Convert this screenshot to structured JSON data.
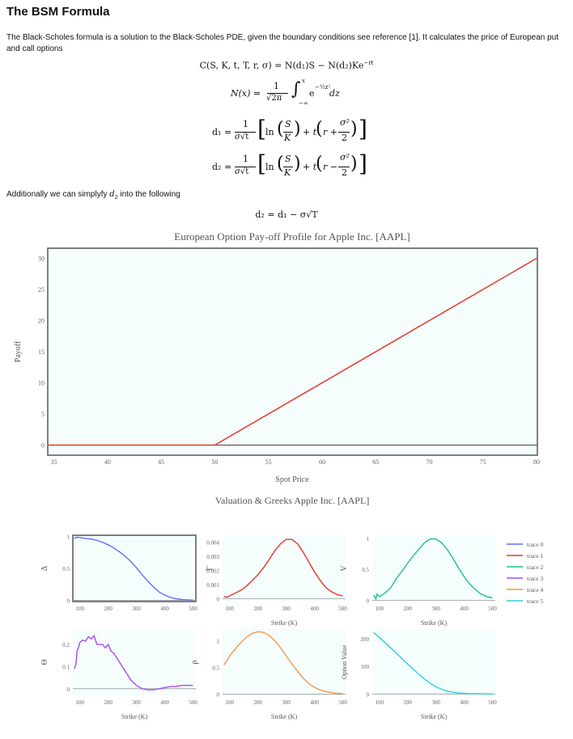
{
  "page": {
    "title": "The BSM Formula",
    "intro": "The Black-Scholes formula is a solution to the Black-Scholes PDE, given the boundary conditions see reference [1]. It calculates the price of European put and call options",
    "additional": "Additionally we can simplyfy",
    "additional_var": "d",
    "additional_sub": "2",
    "additional_tail": " into the following"
  },
  "equations": {
    "call": "C(S, K, t, T, r, σ) = N(d₁)S − N(d₂)Ke",
    "call_exp": "−rt",
    "normal_lhs": "N(x) =",
    "normal_rhs": "e",
    "normal_dz": "dz",
    "d1_lhs": "d₁ =",
    "d2_lhs": "d₂ =",
    "d2_simple": "d₂ = d₁ − σ√T"
  },
  "chart_data": [
    {
      "type": "line",
      "title": "European Option Pay-off Profile for Apple Inc. [AAPL]",
      "xlabel": "Spot Price",
      "ylabel": "Payoff",
      "xlim": [
        34.5,
        80
      ],
      "ylim": [
        -1.5,
        31.5
      ],
      "xticks": [
        35,
        40,
        45,
        50,
        55,
        60,
        65,
        70,
        75,
        80
      ],
      "yticks": [
        0,
        5,
        10,
        15,
        20,
        25,
        30
      ],
      "grid": false,
      "series": [
        {
          "color": "#e8372a",
          "x": [
            34.5,
            50,
            80
          ],
          "y": [
            0,
            0,
            30
          ]
        }
      ]
    },
    {
      "type": "line",
      "title": "Valuation & Greeks Apple Inc. [AAPL]",
      "legend": "right",
      "legend_entries": [
        "trace 0",
        "trace 1",
        "trace 2",
        "trace 3",
        "trace 4",
        "trace 5"
      ],
      "panels": [
        {
          "ylabel": "Δ",
          "xlabel": "",
          "xlim": [
            75,
            510
          ],
          "ylim": [
            -0.02,
            1.02
          ],
          "xticks": [
            100,
            200,
            300,
            400,
            500
          ],
          "yticks": [
            0,
            0.5,
            1
          ],
          "color": "#636efa",
          "x": [
            80,
            90,
            100,
            120,
            140,
            160,
            180,
            200,
            220,
            240,
            260,
            280,
            300,
            320,
            340,
            360,
            380,
            400,
            420,
            440,
            460,
            480,
            500
          ],
          "y": [
            0.97,
            0.99,
            0.985,
            0.97,
            0.96,
            0.94,
            0.91,
            0.87,
            0.82,
            0.76,
            0.69,
            0.61,
            0.51,
            0.4,
            0.3,
            0.21,
            0.13,
            0.08,
            0.045,
            0.025,
            0.012,
            0.006,
            0.003
          ]
        },
        {
          "ylabel": "Γ",
          "xlabel": "Strike (K)",
          "xlim": [
            75,
            510
          ],
          "ylim": [
            -0.0002,
            0.0045
          ],
          "xticks": [
            100,
            200,
            300,
            400,
            500
          ],
          "yticks": [
            0,
            0.001,
            0.002,
            0.003,
            0.004
          ],
          "color": "#e8372a",
          "x": [
            80,
            90,
            100,
            120,
            140,
            160,
            180,
            200,
            220,
            240,
            260,
            280,
            300,
            320,
            340,
            360,
            380,
            400,
            420,
            440,
            460,
            480,
            500
          ],
          "y": [
            0.00015,
            0.0001,
            0.0002,
            0.0004,
            0.0006,
            0.0009,
            0.0013,
            0.0017,
            0.0022,
            0.0028,
            0.0034,
            0.0039,
            0.0042,
            0.0042,
            0.0039,
            0.0033,
            0.0026,
            0.0019,
            0.0013,
            0.0008,
            0.0005,
            0.0003,
            0.0002
          ]
        },
        {
          "ylabel": "V",
          "xlabel": "Strike (K)",
          "xlim": [
            75,
            510
          ],
          "ylim": [
            -0.02,
            1.05
          ],
          "xticks": [
            100,
            200,
            300,
            400,
            500
          ],
          "yticks": [
            0,
            0.5,
            1
          ],
          "color": "#1fbf8f",
          "x": [
            80,
            88,
            92,
            100,
            120,
            140,
            160,
            180,
            200,
            220,
            240,
            260,
            280,
            300,
            320,
            340,
            360,
            380,
            400,
            420,
            440,
            460,
            480,
            500
          ],
          "y": [
            0.08,
            0.02,
            0.1,
            0.06,
            0.12,
            0.2,
            0.35,
            0.47,
            0.6,
            0.72,
            0.83,
            0.93,
            0.99,
            0.99,
            0.93,
            0.82,
            0.68,
            0.52,
            0.38,
            0.26,
            0.17,
            0.1,
            0.06,
            0.04
          ]
        },
        {
          "ylabel": "Θ",
          "xlabel": "Strike (K)",
          "xlim": [
            75,
            510
          ],
          "ylim": [
            -0.03,
            0.27
          ],
          "xticks": [
            100,
            200,
            300,
            400,
            500
          ],
          "yticks": [
            0,
            0.1,
            0.2
          ],
          "color": "#a64df0",
          "x": [
            80,
            86,
            90,
            96,
            100,
            110,
            120,
            130,
            140,
            150,
            160,
            180,
            190,
            200,
            210,
            220,
            240,
            260,
            280,
            300,
            320,
            340,
            360,
            380,
            400,
            420,
            440,
            460,
            480,
            500
          ],
          "y": [
            0.09,
            0.11,
            0.17,
            0.19,
            0.21,
            0.22,
            0.215,
            0.235,
            0.225,
            0.24,
            0.2,
            0.2,
            0.185,
            0.2,
            0.17,
            0.16,
            0.12,
            0.08,
            0.04,
            0.015,
            0.0,
            -0.005,
            -0.005,
            0.0,
            0.005,
            0.01,
            0.01,
            0.015,
            0.015,
            0.015
          ]
        },
        {
          "ylabel": "ρ",
          "xlabel": "Strike (K)",
          "xlim": [
            75,
            510
          ],
          "ylim": [
            -0.02,
            1.22
          ],
          "xticks": [
            100,
            200,
            300,
            400,
            500
          ],
          "yticks": [
            0,
            0.5,
            1
          ],
          "color": "#f2994a",
          "x": [
            80,
            90,
            100,
            120,
            140,
            160,
            180,
            200,
            220,
            240,
            260,
            280,
            300,
            320,
            340,
            360,
            380,
            400,
            420,
            440,
            460,
            480,
            500
          ],
          "y": [
            0.55,
            0.62,
            0.72,
            0.85,
            0.97,
            1.07,
            1.14,
            1.17,
            1.16,
            1.1,
            1.0,
            0.87,
            0.72,
            0.57,
            0.43,
            0.3,
            0.2,
            0.13,
            0.08,
            0.05,
            0.03,
            0.02,
            0.01
          ]
        },
        {
          "ylabel": "Option Value",
          "xlabel": "Strike (K)",
          "xlim": [
            75,
            510
          ],
          "ylim": [
            -5,
            235
          ],
          "xticks": [
            100,
            200,
            300,
            400,
            500
          ],
          "yticks": [
            0,
            100,
            200
          ],
          "color": "#2bd0e0",
          "x": [
            80,
            100,
            120,
            140,
            160,
            180,
            200,
            220,
            240,
            260,
            280,
            300,
            320,
            340,
            360,
            380,
            400,
            420,
            440,
            460,
            480,
            500
          ],
          "y": [
            222,
            205,
            186,
            167,
            148,
            128,
            108,
            89,
            71,
            54,
            39,
            26,
            17,
            10,
            6,
            3.5,
            2,
            1.2,
            0.8,
            0.5,
            0.3,
            0.2
          ]
        }
      ]
    }
  ]
}
